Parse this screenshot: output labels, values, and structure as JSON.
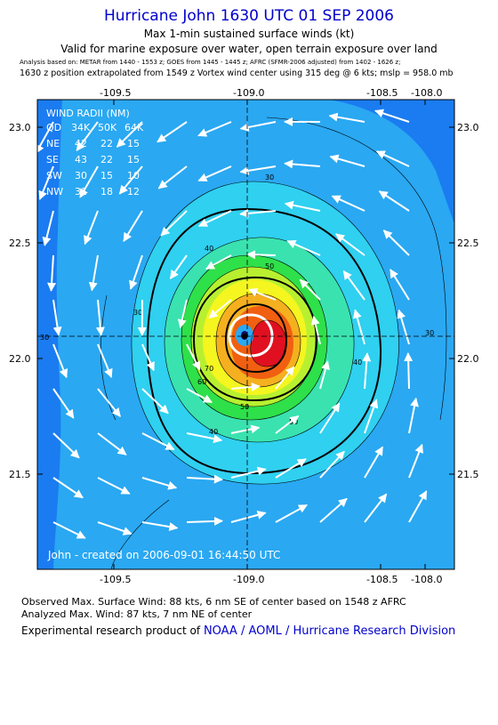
{
  "header": {
    "title": "Hurricane John 1630 UTC 01 SEP 2006",
    "subtitle": "Max 1-min sustained surface winds (kt)",
    "valid_note": "Valid for marine exposure over water, open terrain exposure over land",
    "analysis_basis": "Analysis based on:  METAR from 1440 - 1553 z;  GOES from 1445 - 1445 z;  AFRC (SFMR-2006 adjusted) from 1402 - 1626 z;",
    "position_note": "1630 z position extrapolated from 1549 z Vortex wind center using 315 deg @ 6 kts; mslp = 958.0 mb"
  },
  "map": {
    "x_ticks": [
      "-109.5",
      "-109.0",
      "-108.5",
      "-108.0"
    ],
    "y_ticks": [
      "23.0",
      "22.5",
      "22.0",
      "21.5"
    ],
    "contour_labels": [
      "30",
      "30",
      "30",
      "40",
      "40",
      "40",
      "50",
      "50",
      "60",
      "70",
      "50",
      "30"
    ],
    "credit": "John - created on 2006-09-01 16:44:50 UTC",
    "wind_radii": {
      "title": "WIND RADII (NM)",
      "header": [
        "QD",
        "34K",
        "50K",
        "64K"
      ],
      "rows": [
        [
          "NE",
          "42",
          "22",
          "15"
        ],
        [
          "SE",
          "43",
          "22",
          "15"
        ],
        [
          "SW",
          "30",
          "15",
          "10"
        ],
        [
          "NW",
          "31",
          "18",
          "12"
        ]
      ]
    },
    "colors": {
      "background": "#1a7cf0",
      "c30": "#2aa8f2",
      "c40": "#2fd0f0",
      "c50": "#3ae2b0",
      "c60": "#2ee04a",
      "c70": "#b8f030",
      "c75": "#f5f520",
      "c80": "#f5b020",
      "c85": "#f06010",
      "c88": "#e01020"
    }
  },
  "footer": {
    "observed": "Observed Max. Surface Wind: 88 kts, 6 nm SE of center based on 1548 z AFRC",
    "analyzed": "Analyzed Max. Wind: 87 kts, 7 nm NE of center",
    "credit_prefix": "Experimental research product of",
    "credit_link": "NOAA / AOML / Hurricane Research Division"
  }
}
